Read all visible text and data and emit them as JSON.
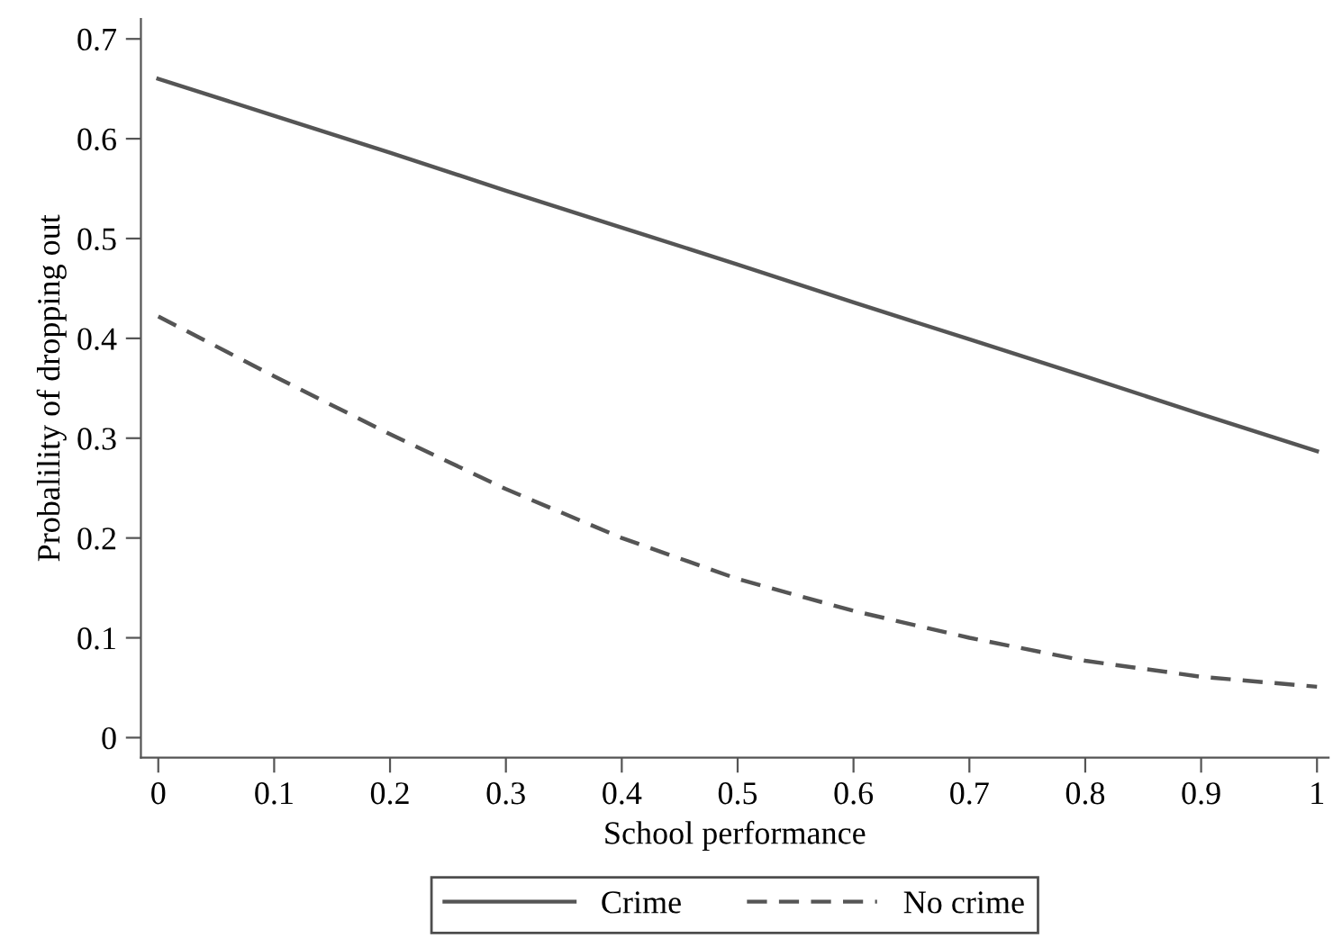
{
  "chart_data": {
    "type": "line",
    "xlabel": "School performance",
    "ylabel": "Probalility of dropping out",
    "x": [
      0,
      0.1,
      0.2,
      0.3,
      0.4,
      0.5,
      0.6,
      0.7,
      0.8,
      0.9,
      1
    ],
    "series": [
      {
        "name": "Crime",
        "color": "#555555",
        "line_style": "solid",
        "values": [
          0.66,
          0.623,
          0.586,
          0.548,
          0.511,
          0.474,
          0.436,
          0.399,
          0.362,
          0.324,
          0.287
        ]
      },
      {
        "name": "No crime",
        "color": "#555555",
        "line_style": "dashed",
        "values": [
          0.422,
          0.362,
          0.304,
          0.249,
          0.2,
          0.159,
          0.127,
          0.1,
          0.077,
          0.061,
          0.051
        ]
      }
    ],
    "xlim": [
      -0.015,
      1.01
    ],
    "ylim": [
      -0.02,
      0.72
    ],
    "xticks": [
      0,
      0.1,
      0.2,
      0.3,
      0.4,
      0.5,
      0.6,
      0.7,
      0.8,
      0.9,
      1
    ],
    "yticks": [
      0,
      0.1,
      0.2,
      0.3,
      0.4,
      0.5,
      0.6,
      0.7
    ],
    "grid": false,
    "legend": "bottom",
    "marker": "none"
  }
}
